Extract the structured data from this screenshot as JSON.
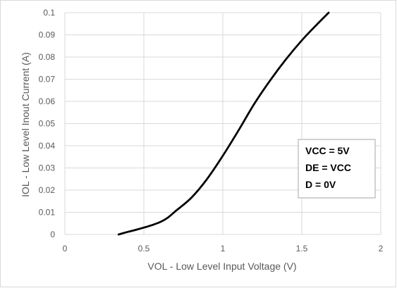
{
  "chart_data": {
    "type": "line",
    "title": "",
    "xlabel": "VOL - Low Level Input Voltage (V)",
    "ylabel": "IOL - Low Level Inout Current (A)",
    "xlim": [
      0,
      2
    ],
    "ylim": [
      0,
      0.1
    ],
    "x_ticks": [
      0,
      0.5,
      1,
      1.5,
      2
    ],
    "x_tick_labels": [
      "0",
      "0.5",
      "1",
      "1.5",
      "2"
    ],
    "y_ticks": [
      0,
      0.01,
      0.02,
      0.03,
      0.04,
      0.05,
      0.06,
      0.07,
      0.08,
      0.09,
      0.1
    ],
    "y_tick_labels": [
      "0",
      "0.01",
      "0.02",
      "0.03",
      "0.04",
      "0.05",
      "0.06",
      "0.07",
      "0.08",
      "0.09",
      "0.1"
    ],
    "grid": true,
    "line_color": "#000000",
    "grid_color": "#d9d9d9",
    "series": [
      {
        "x": [
          0.34,
          0.4,
          0.45,
          0.5,
          0.55,
          0.6,
          0.65,
          0.7,
          0.8,
          0.9,
          1.0,
          1.1,
          1.2,
          1.3,
          1.4,
          1.5,
          1.6,
          1.67
        ],
        "y": [
          0.0,
          0.0012,
          0.0021,
          0.0031,
          0.0042,
          0.0055,
          0.0075,
          0.0105,
          0.0165,
          0.025,
          0.0355,
          0.047,
          0.059,
          0.0695,
          0.079,
          0.0875,
          0.095,
          0.1
        ]
      }
    ],
    "annotation": {
      "lines": [
        "VCC = 5V",
        "DE = VCC",
        "D = 0V"
      ],
      "placement": "right"
    }
  }
}
